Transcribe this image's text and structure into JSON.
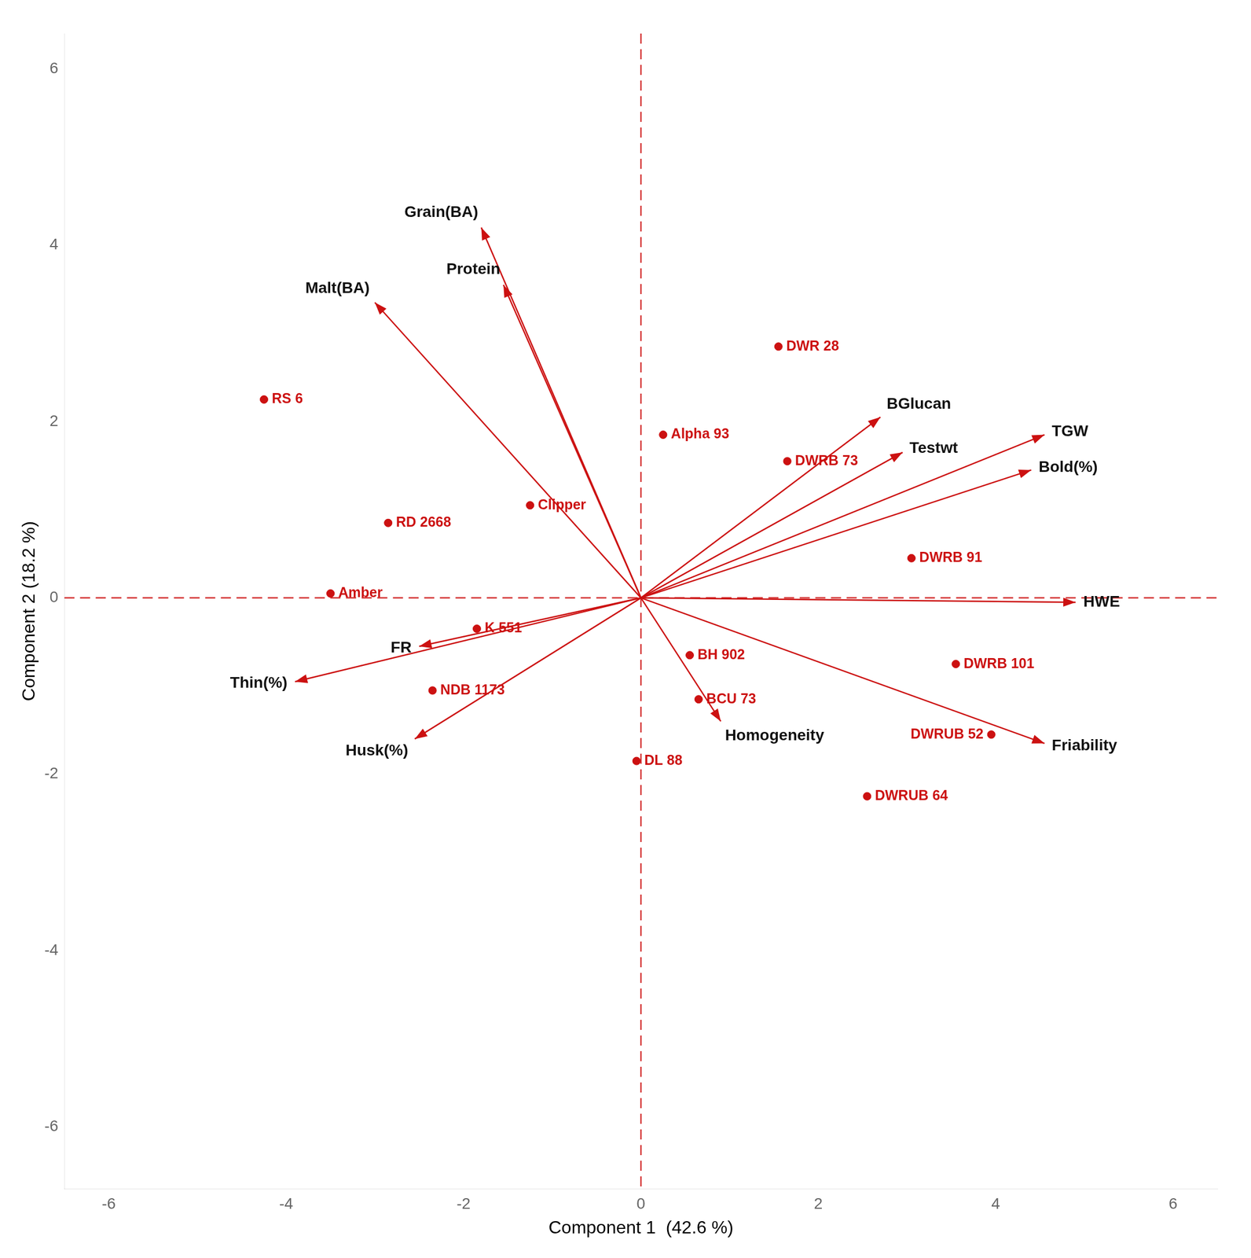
{
  "chart_data": {
    "type": "biplot",
    "xlabel": "Component 1  (42.6 %)",
    "ylabel": "Component 2 (18.2 %)",
    "xlim": [
      -6.5,
      6.5
    ],
    "ylim": [
      -6.7,
      6.4
    ],
    "xticks": [
      -6,
      -4,
      -2,
      0,
      2,
      4,
      6
    ],
    "yticks": [
      -6,
      -4,
      -2,
      0,
      2,
      4,
      6
    ],
    "grid": false,
    "color": "#cc1111",
    "vectors": [
      {
        "name": "Grain(BA)",
        "x": -1.8,
        "y": 4.2
      },
      {
        "name": "Protein",
        "x": -1.55,
        "y": 3.55
      },
      {
        "name": "Malt(BA)",
        "x": -3.0,
        "y": 3.35
      },
      {
        "name": "FR",
        "x": -2.5,
        "y": -0.55
      },
      {
        "name": "Thin(%)",
        "x": -3.9,
        "y": -0.95
      },
      {
        "name": "Husk(%)",
        "x": -2.55,
        "y": -1.6
      },
      {
        "name": "Homogeneity",
        "x": 0.9,
        "y": -1.4
      },
      {
        "name": "HWE",
        "x": 4.9,
        "y": -0.05
      },
      {
        "name": "Bold(%)",
        "x": 4.4,
        "y": 1.45
      },
      {
        "name": "TGW",
        "x": 4.55,
        "y": 1.85
      },
      {
        "name": "BGlucan",
        "x": 2.7,
        "y": 2.05
      },
      {
        "name": "Testwt",
        "x": 2.95,
        "y": 1.65
      },
      {
        "name": "Friability",
        "x": 4.55,
        "y": -1.65
      }
    ],
    "points": [
      {
        "name": "RS 6",
        "x": -4.25,
        "y": 2.25
      },
      {
        "name": "Amber",
        "x": -3.5,
        "y": 0.05
      },
      {
        "name": "RD 2668",
        "x": -2.85,
        "y": 0.85
      },
      {
        "name": "K 551",
        "x": -1.85,
        "y": -0.35
      },
      {
        "name": "NDB 1173",
        "x": -2.35,
        "y": -1.05
      },
      {
        "name": "Clipper",
        "x": -1.25,
        "y": 1.05
      },
      {
        "name": "Alpha 93",
        "x": 0.25,
        "y": 1.85
      },
      {
        "name": "DWR 28",
        "x": 1.55,
        "y": 2.85
      },
      {
        "name": "DWRB 73",
        "x": 1.65,
        "y": 1.55
      },
      {
        "name": "DWRB 91",
        "x": 3.05,
        "y": 0.45
      },
      {
        "name": "DWRB 101",
        "x": 3.55,
        "y": -0.75
      },
      {
        "name": "DWRUB 52",
        "x": 3.95,
        "y": -1.55
      },
      {
        "name": "DWRUB 64",
        "x": 2.55,
        "y": -2.25
      },
      {
        "name": "BH 902",
        "x": 0.55,
        "y": -0.65
      },
      {
        "name": "BCU 73",
        "x": 0.65,
        "y": -1.15
      },
      {
        "name": "DL 88",
        "x": -0.05,
        "y": -1.85
      }
    ]
  }
}
